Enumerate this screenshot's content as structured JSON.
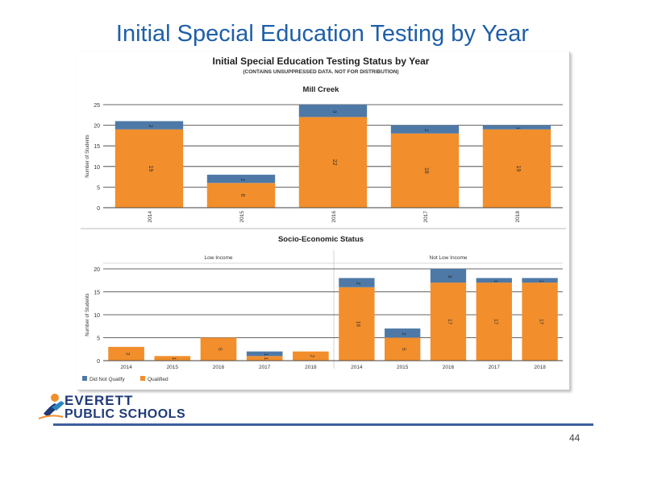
{
  "slide": {
    "title": "Initial Special Education Testing by Year",
    "page_number": "44",
    "logo_line1": "EVERETT",
    "logo_line2": "PUBLIC SCHOOLS"
  },
  "colors": {
    "qualified": "#f28e2b",
    "did_not_qualify": "#4e79a7",
    "title_blue": "#1f5fa8"
  },
  "chart_data": [
    {
      "type": "bar",
      "stacked": true,
      "title": "Initial Special Education Testing Status by Year",
      "subtitle": "(CONTAINS UNSUPPRESSED DATA. NOT FOR DISTRIBUTION)",
      "facet": "Mill Creek",
      "ylabel": "Number of Students",
      "ylim": [
        0,
        25
      ],
      "yticks": [
        0,
        5,
        10,
        15,
        20,
        25
      ],
      "categories": [
        "2014",
        "2015",
        "2016",
        "2017",
        "2018"
      ],
      "series": [
        {
          "name": "Qualified",
          "values": [
            19,
            6,
            22,
            18,
            19
          ]
        },
        {
          "name": "Did Not Qualify",
          "values": [
            2,
            2,
            3,
            2,
            1
          ]
        }
      ]
    },
    {
      "type": "bar",
      "stacked": true,
      "title": "Socio-Economic Status",
      "ylabel": "Number of Students",
      "ylim": [
        0,
        20
      ],
      "yticks": [
        0,
        5,
        10,
        15,
        20
      ],
      "panels": [
        {
          "name": "Low Income",
          "categories": [
            "2014",
            "2015",
            "2016",
            "2017",
            "2018"
          ],
          "series": [
            {
              "name": "Qualified",
              "values": [
                3,
                1,
                5,
                1,
                2
              ]
            },
            {
              "name": "Did Not Qualify",
              "values": [
                0,
                0,
                0,
                1,
                0
              ]
            }
          ]
        },
        {
          "name": "Not Low Income",
          "categories": [
            "2014",
            "2015",
            "2016",
            "2017",
            "2018"
          ],
          "series": [
            {
              "name": "Qualified",
              "values": [
                16,
                5,
                17,
                17,
                17
              ]
            },
            {
              "name": "Did Not Qualify",
              "values": [
                2,
                2,
                3,
                1,
                1
              ]
            }
          ]
        }
      ],
      "legend": {
        "placement": "bottom-left",
        "items": [
          "Did Not Qualify",
          "Qualified"
        ]
      }
    }
  ]
}
